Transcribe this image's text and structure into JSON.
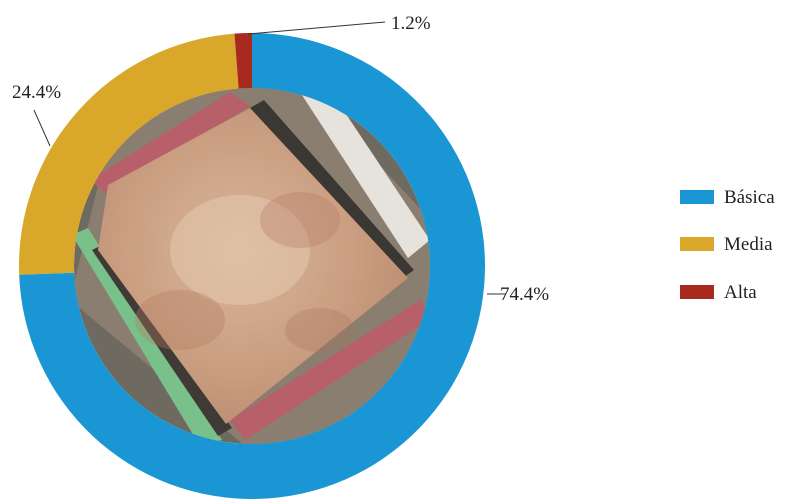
{
  "chart_data": {
    "type": "pie",
    "variant": "donut",
    "title": "",
    "categories": [
      "Básica",
      "Media",
      "Alta"
    ],
    "values": [
      74.4,
      24.4,
      1.2
    ],
    "unit": "%",
    "colors": [
      "#1a96d4",
      "#d9a82b",
      "#a8291e"
    ],
    "data_labels": [
      "74.4%",
      "24.4%",
      "1.2%"
    ],
    "legend": {
      "position": "right",
      "items": [
        {
          "label": "Básica",
          "color": "#1a96d4"
        },
        {
          "label": "Media",
          "color": "#d9a82b"
        },
        {
          "label": "Alta",
          "color": "#a8291e"
        }
      ]
    },
    "center_image": "aerial photo of a dirt sports field (bullring / stadium) seen from above"
  }
}
